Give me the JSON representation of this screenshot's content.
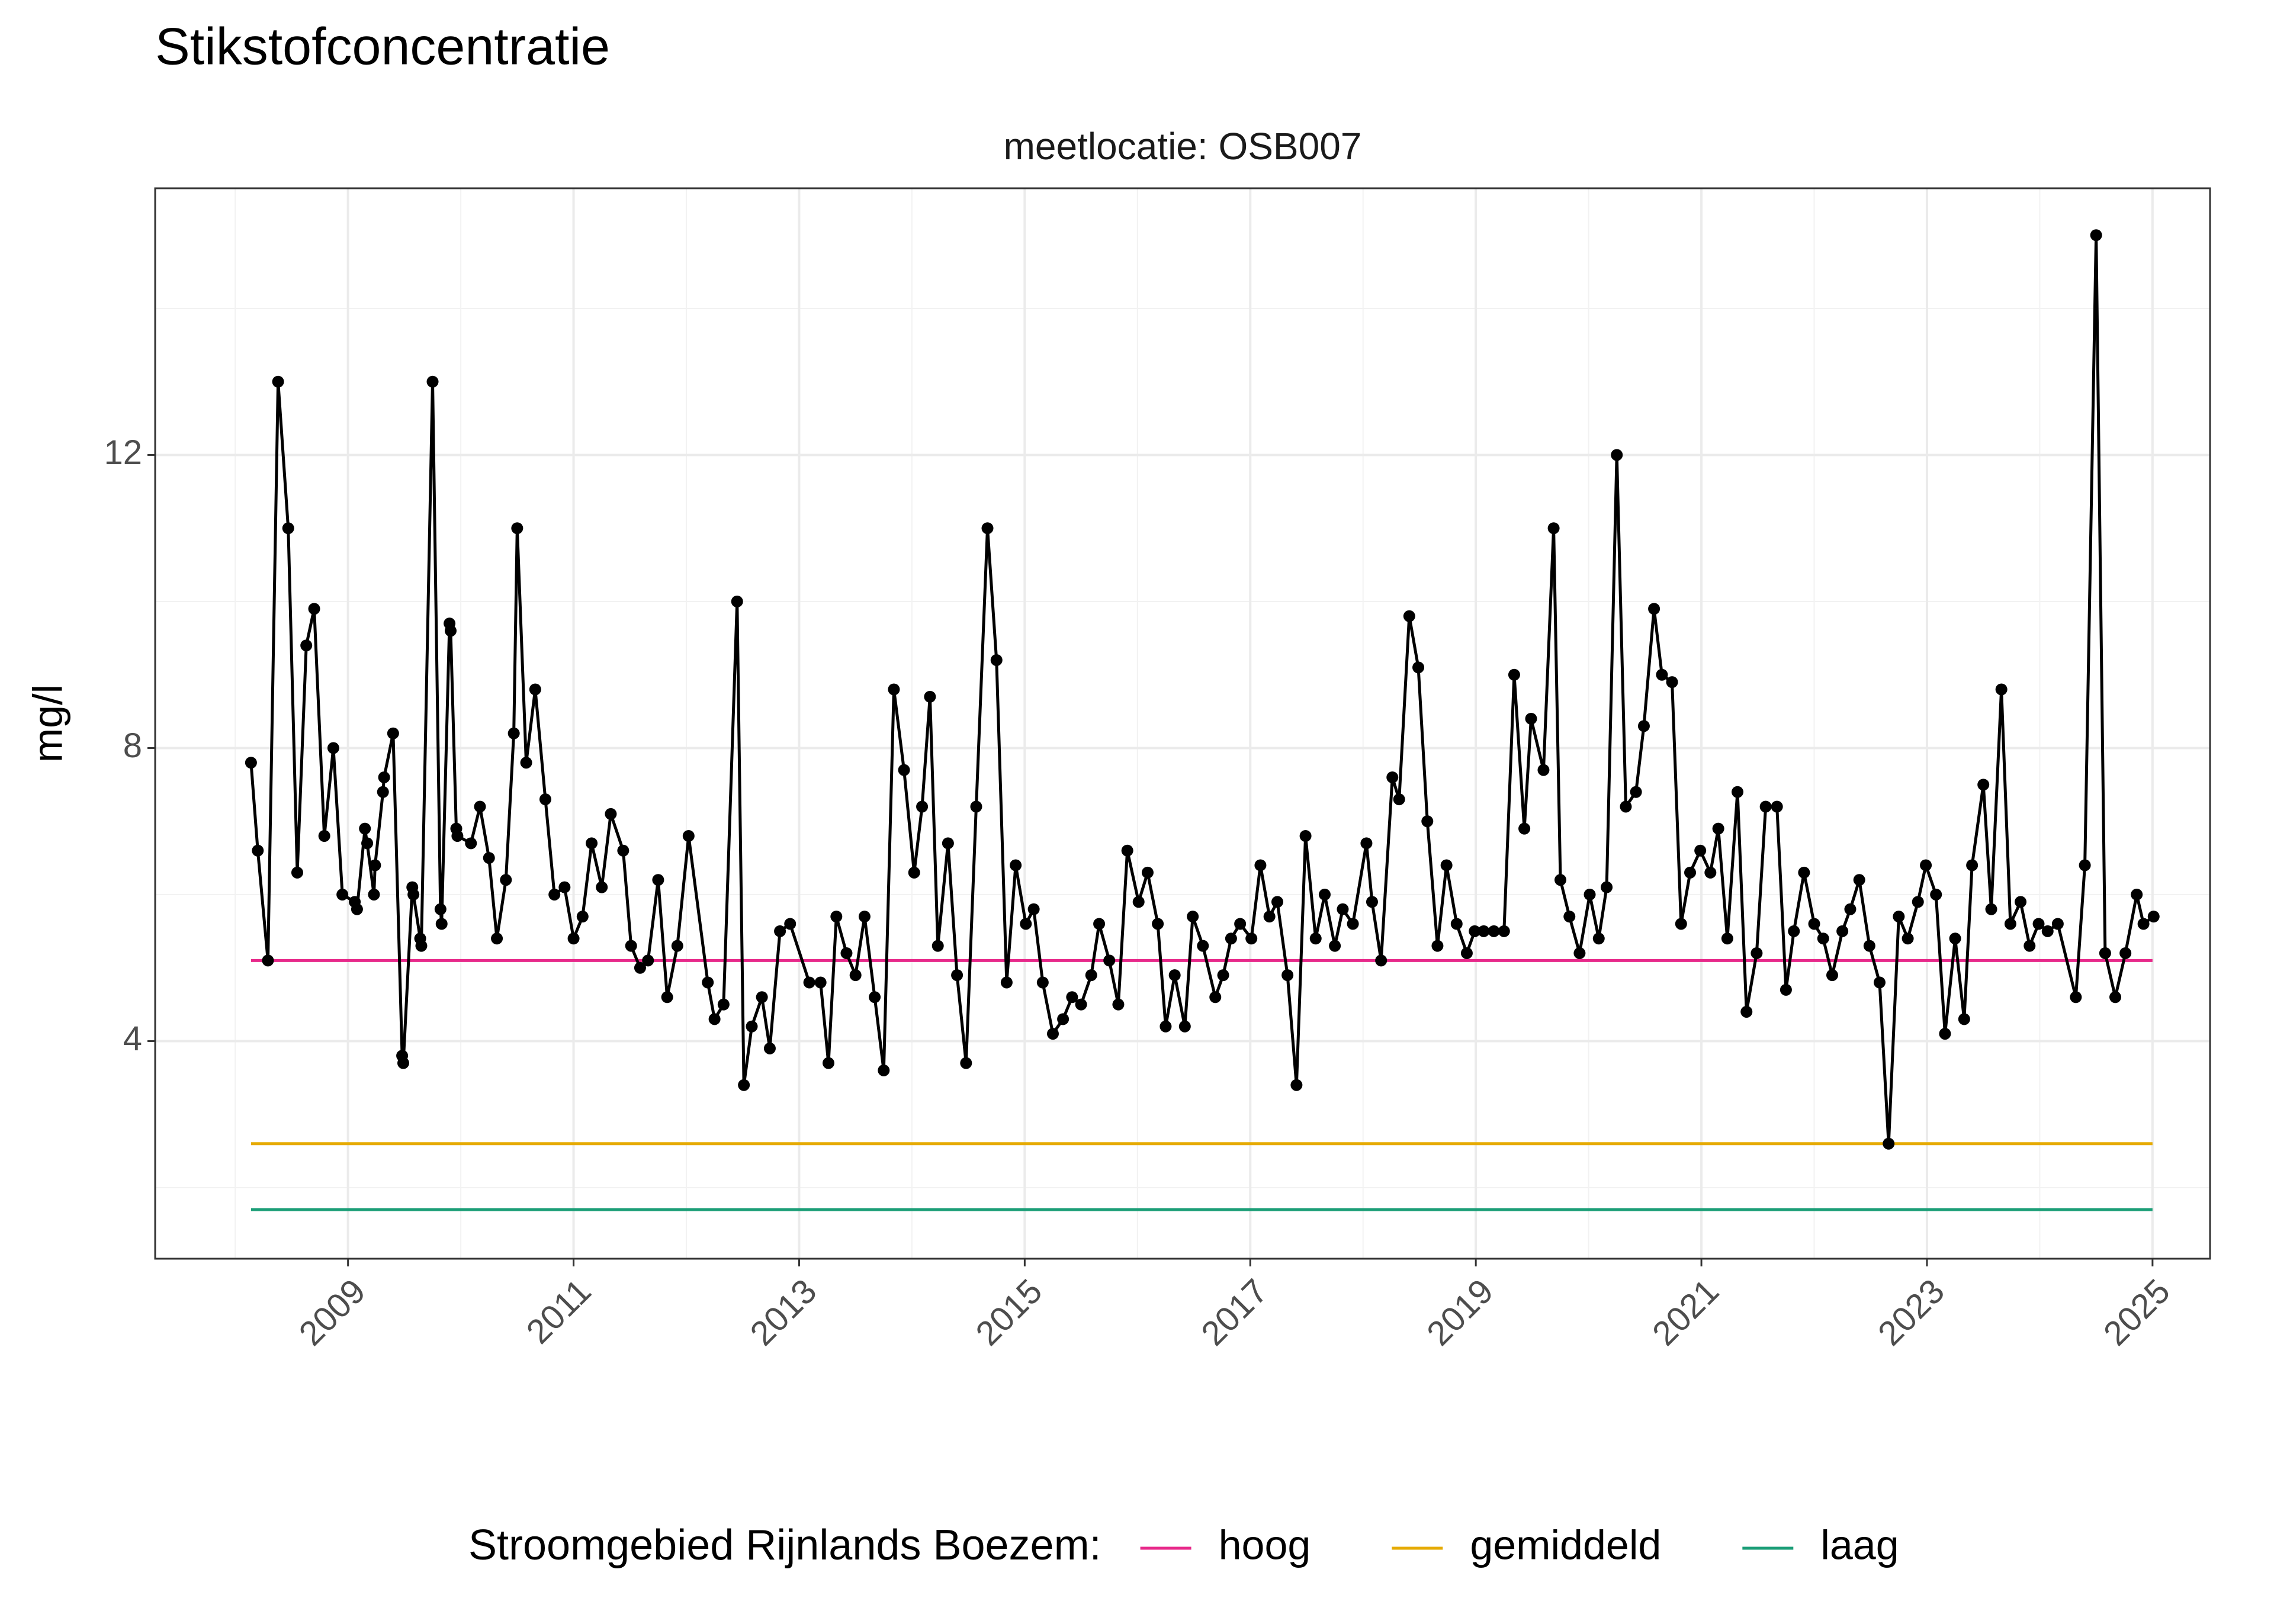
{
  "chart_data": {
    "type": "line",
    "title": "Stikstofconcentratie",
    "subtitle": "meetlocatie: OSB007",
    "y_label": "mg/l",
    "legend_title": "Stroomgebied Rijnlands Boezem:",
    "legend_position": "bottom",
    "grid": true,
    "xlim": [
      2007.29,
      2025.51
    ],
    "ylim": [
      1.03,
      15.64
    ],
    "xticks": [
      2009,
      2011,
      2013,
      2015,
      2017,
      2019,
      2021,
      2023,
      2025
    ],
    "yticks": [
      4,
      8,
      12
    ],
    "minor_xticks": [
      2008,
      2010,
      2012,
      2014,
      2016,
      2018,
      2020,
      2022,
      2024
    ],
    "minor_yticks": [
      2,
      6,
      10,
      14
    ],
    "series": [
      {
        "color": "#000000",
        "markers": true,
        "x": [
          2008.14,
          2008.2,
          2008.29,
          2008.38,
          2008.47,
          2008.55,
          2008.63,
          2008.7,
          2008.79,
          2008.87,
          2008.95,
          2009.06,
          2009.08,
          2009.15,
          2009.17,
          2009.23,
          2009.24,
          2009.31,
          2009.32,
          2009.4,
          2009.48,
          2009.49,
          2009.57,
          2009.58,
          2009.64,
          2009.65,
          2009.75,
          2009.82,
          2009.83,
          2009.9,
          2009.91,
          2009.96,
          2009.97,
          2010.09,
          2010.17,
          2010.25,
          2010.32,
          2010.4,
          2010.47,
          2010.5,
          2010.58,
          2010.66,
          2010.75,
          2010.83,
          2010.92,
          2011.0,
          2011.08,
          2011.16,
          2011.25,
          2011.33,
          2011.44,
          2011.51,
          2011.59,
          2011.66,
          2011.75,
          2011.83,
          2011.92,
          2012.02,
          2012.19,
          2012.25,
          2012.33,
          2012.45,
          2012.51,
          2012.58,
          2012.67,
          2012.74,
          2012.83,
          2012.92,
          2013.09,
          2013.19,
          2013.26,
          2013.33,
          2013.42,
          2013.5,
          2013.58,
          2013.67,
          2013.75,
          2013.84,
          2013.93,
          2014.02,
          2014.09,
          2014.16,
          2014.23,
          2014.32,
          2014.4,
          2014.48,
          2014.57,
          2014.67,
          2014.75,
          2014.84,
          2014.92,
          2015.01,
          2015.08,
          2015.16,
          2015.25,
          2015.34,
          2015.42,
          2015.5,
          2015.59,
          2015.66,
          2015.75,
          2015.83,
          2015.91,
          2016.01,
          2016.09,
          2016.18,
          2016.25,
          2016.33,
          2016.42,
          2016.49,
          2016.58,
          2016.69,
          2016.76,
          2016.83,
          2016.91,
          2017.01,
          2017.09,
          2017.17,
          2017.24,
          2017.33,
          2017.41,
          2017.49,
          2017.58,
          2017.66,
          2017.75,
          2017.82,
          2017.91,
          2018.03,
          2018.08,
          2018.16,
          2018.26,
          2018.32,
          2018.41,
          2018.49,
          2018.57,
          2018.66,
          2018.74,
          2018.83,
          2018.92,
          2018.99,
          2019.07,
          2019.16,
          2019.25,
          2019.34,
          2019.43,
          2019.49,
          2019.6,
          2019.69,
          2019.75,
          2019.83,
          2019.92,
          2020.01,
          2020.09,
          2020.16,
          2020.25,
          2020.33,
          2020.42,
          2020.49,
          2020.58,
          2020.65,
          2020.74,
          2020.82,
          2020.9,
          2020.99,
          2021.08,
          2021.15,
          2021.23,
          2021.32,
          2021.4,
          2021.49,
          2021.57,
          2021.67,
          2021.75,
          2021.82,
          2021.91,
          2022.0,
          2022.08,
          2022.16,
          2022.25,
          2022.32,
          2022.4,
          2022.49,
          2022.58,
          2022.66,
          2022.75,
          2022.83,
          2022.92,
          2022.99,
          2023.08,
          2023.16,
          2023.25,
          2023.33,
          2023.4,
          2023.5,
          2023.57,
          2023.66,
          2023.74,
          2023.83,
          2023.91,
          2023.99,
          2024.07,
          2024.16,
          2024.32,
          2024.4,
          2024.5,
          2024.58,
          2024.67,
          2024.76,
          2024.86,
          2024.92,
          2025.01
        ],
        "values": [
          7.8,
          6.6,
          5.1,
          13.0,
          11.0,
          6.3,
          9.4,
          9.9,
          6.8,
          8.0,
          6.0,
          5.9,
          5.8,
          6.9,
          6.7,
          6.0,
          6.4,
          7.4,
          7.6,
          8.2,
          3.8,
          3.7,
          6.1,
          6.0,
          5.4,
          5.3,
          13.0,
          5.8,
          5.6,
          9.7,
          9.6,
          6.9,
          6.8,
          6.7,
          7.2,
          6.5,
          5.4,
          6.2,
          8.2,
          11.0,
          7.8,
          8.8,
          7.3,
          6.0,
          6.1,
          5.4,
          5.7,
          6.7,
          6.1,
          7.1,
          6.6,
          5.3,
          5.0,
          5.1,
          6.2,
          4.6,
          5.3,
          6.8,
          4.8,
          4.3,
          4.5,
          10.0,
          3.4,
          4.2,
          4.6,
          3.9,
          5.5,
          5.6,
          4.8,
          4.8,
          3.7,
          5.7,
          5.2,
          4.9,
          5.7,
          4.6,
          3.6,
          8.8,
          7.7,
          6.3,
          7.2,
          8.7,
          5.3,
          6.7,
          4.9,
          3.7,
          7.2,
          11.0,
          9.2,
          4.8,
          6.4,
          5.6,
          5.8,
          4.8,
          4.1,
          4.3,
          4.6,
          4.5,
          4.9,
          5.6,
          5.1,
          4.5,
          6.6,
          5.9,
          6.3,
          5.6,
          4.2,
          4.9,
          4.2,
          5.7,
          5.3,
          4.6,
          4.9,
          5.4,
          5.6,
          5.4,
          6.4,
          5.7,
          5.9,
          4.9,
          3.4,
          6.8,
          5.4,
          6.0,
          5.3,
          5.8,
          5.6,
          6.7,
          5.9,
          5.1,
          7.6,
          7.3,
          9.8,
          9.1,
          7.0,
          5.3,
          6.4,
          5.6,
          5.2,
          5.5,
          5.5,
          5.5,
          5.5,
          9.0,
          6.9,
          8.4,
          7.7,
          11.0,
          6.2,
          5.7,
          5.2,
          6.0,
          5.4,
          6.1,
          12.0,
          7.2,
          7.4,
          8.3,
          9.9,
          9.0,
          8.9,
          5.6,
          6.3,
          6.6,
          6.3,
          6.9,
          5.4,
          7.4,
          4.4,
          5.2,
          7.2,
          7.2,
          4.7,
          5.5,
          6.3,
          5.6,
          5.4,
          4.9,
          5.5,
          5.8,
          6.2,
          5.3,
          4.8,
          2.6,
          5.7,
          5.4,
          5.9,
          6.4,
          6.0,
          4.1,
          5.4,
          4.3,
          6.4,
          7.5,
          5.8,
          8.8,
          5.6,
          5.9,
          5.3,
          5.6,
          5.5,
          5.6,
          4.6,
          6.4,
          15.0,
          5.2,
          4.6,
          5.2,
          6.0,
          5.6,
          5.7
        ]
      },
      {
        "name": "hoog",
        "color": "#e7298a",
        "x": [
          2008.14,
          2025.0
        ],
        "values": [
          5.1,
          5.1
        ]
      },
      {
        "name": "gemiddeld",
        "color": "#e6ab02",
        "x": [
          2008.14,
          2025.0
        ],
        "values": [
          2.6,
          2.6
        ]
      },
      {
        "name": "laag",
        "color": "#1b9e77",
        "x": [
          2008.14,
          2025.0
        ],
        "values": [
          1.7,
          1.7
        ]
      }
    ]
  }
}
